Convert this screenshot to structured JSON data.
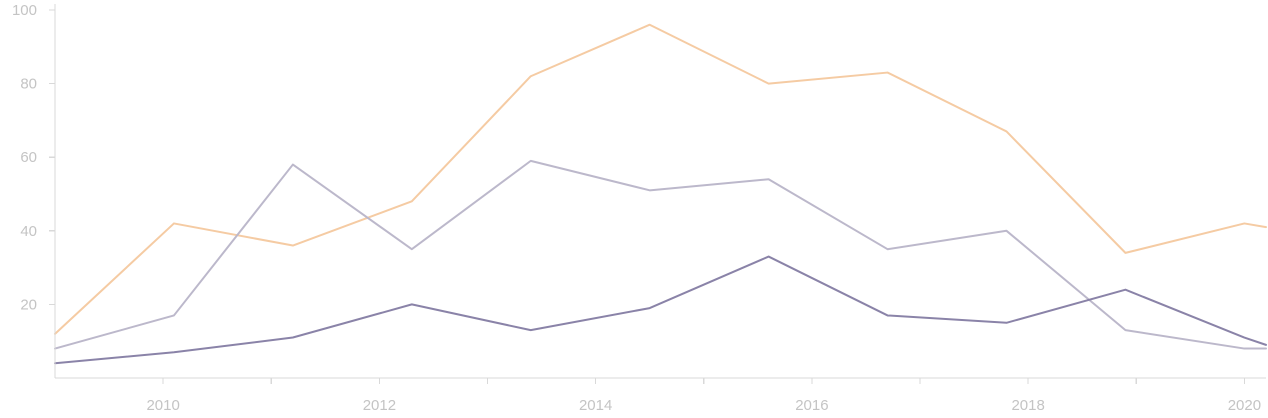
{
  "chart_data": {
    "type": "line",
    "title": "",
    "xlabel": "",
    "ylabel": "",
    "x": [
      2009,
      2010.1,
      2011.2,
      2012.3,
      2013.4,
      2014.5,
      2015.6,
      2016.7,
      2017.8,
      2018.9,
      2020,
      2020.2
    ],
    "xlim": [
      2009,
      2020.2
    ],
    "ylim": [
      0,
      100
    ],
    "x_ticks": [
      2010,
      2012,
      2014,
      2016,
      2018,
      2020
    ],
    "x_tick_marks": [
      2010,
      2011,
      2012,
      2013,
      2014,
      2015,
      2016,
      2017,
      2018,
      2019,
      2020
    ],
    "y_ticks": [
      20,
      40,
      60,
      80,
      100
    ],
    "x_tick_labels": [
      "2010",
      "2012",
      "2014",
      "2016",
      "2018",
      "2020"
    ],
    "y_tick_labels": [
      "20",
      "40",
      "60",
      "80",
      "100"
    ],
    "grid": false,
    "legend": "none",
    "series": [
      {
        "color": "#f5cba3",
        "values": [
          12,
          42,
          36,
          48,
          82,
          96,
          80,
          83,
          67,
          34,
          42,
          41
        ]
      },
      {
        "color": "#bcb8cb",
        "values": [
          8,
          17,
          58,
          35,
          59,
          51,
          54,
          35,
          40,
          13,
          8,
          8
        ]
      },
      {
        "color": "#8a83a8",
        "values": [
          4,
          7,
          11,
          20,
          13,
          19,
          33,
          17,
          15,
          24,
          11,
          9
        ]
      }
    ]
  }
}
